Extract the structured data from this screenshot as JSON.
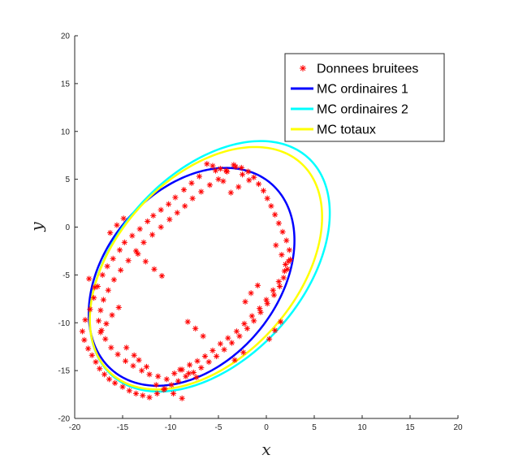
{
  "chart_data": {
    "type": "scatter",
    "title": "",
    "xlabel": "x",
    "ylabel": "y",
    "xlim": [
      -20,
      20
    ],
    "ylim": [
      -20,
      20
    ],
    "xticks": [
      "-20",
      "-15",
      "-10",
      "-5",
      "0",
      "5",
      "10",
      "15",
      "20"
    ],
    "yticks": [
      "20",
      "15",
      "10",
      "5",
      "0",
      "-5",
      "-10",
      "-15",
      "-20"
    ],
    "grid": false,
    "legend_position": "top-right",
    "legend": [
      {
        "label": "Donnees bruitees",
        "color": "#ff0000",
        "marker": "*"
      },
      {
        "label": "MC ordinaires 1",
        "color": "#0000ff",
        "marker": "line"
      },
      {
        "label": "MC ordinaires 2",
        "color": "#00ffff",
        "marker": "line"
      },
      {
        "label": "MC totaux",
        "color": "#ffff00",
        "marker": "line"
      }
    ],
    "series": [
      {
        "name": "Donnees bruitees",
        "kind": "points",
        "color": "#ff0000",
        "x": [
          -5.6,
          -4.8,
          -4.1,
          -3.2,
          -2.5,
          -1.8,
          -2.9,
          -3.7,
          -4.5,
          -5.3,
          -6.2,
          -7.0,
          -7.8,
          -8.6,
          -9.5,
          -10.2,
          -11.0,
          -11.8,
          -12.4,
          -13.2,
          -14.0,
          -14.8,
          -15.3,
          -16.0,
          -16.6,
          -17.1,
          -17.6,
          -18.0,
          -18.4,
          -18.9,
          -19.2,
          -19.0,
          -18.6,
          -18.2,
          -17.8,
          -17.4,
          -16.9,
          -16.4,
          -15.8,
          -15.0,
          -14.3,
          -13.6,
          -12.9,
          -12.2,
          -11.4,
          -10.6,
          -9.9,
          -9.2,
          -8.4,
          -7.6,
          -6.8,
          -6.0,
          -5.2,
          -4.4,
          -3.6,
          -2.8,
          -2.0,
          -1.3,
          -0.6,
          0.1,
          0.8,
          1.4,
          1.8,
          2.2,
          2.5,
          2.4,
          2.1,
          1.7,
          1.3,
          0.9,
          0.5,
          0.1,
          -0.3,
          -0.8,
          -1.3,
          -1.9,
          -2.6,
          -3.4,
          -4.2,
          -5.0,
          -5.9,
          -6.8,
          -7.7,
          -8.5,
          -9.3,
          -10.1,
          -11.0,
          -11.9,
          -12.8,
          -13.6,
          -14.4,
          -15.2,
          -15.9,
          -16.5,
          -17.0,
          -17.3,
          -17.5,
          -17.2,
          -16.8,
          -16.2,
          -15.5,
          -14.7,
          -13.9,
          -13.0,
          -12.2,
          -11.3,
          -10.4,
          -9.6,
          -8.8,
          -8.0,
          -7.2,
          -6.4,
          -5.6,
          -4.8,
          -4.0,
          -3.1,
          -2.3,
          -1.5,
          -0.7,
          0.0,
          0.7,
          1.3,
          1.9,
          2.3,
          -14.9,
          -15.6,
          -16.3,
          -13.4,
          -12.6,
          -11.7,
          -10.9,
          -8.2,
          -7.4,
          -6.6,
          -2.2,
          -1.6,
          -0.9,
          1.0,
          1.6,
          2.0,
          -15.4,
          -16.1,
          -16.7,
          -17.3,
          -13.3,
          -12.5,
          -9.0,
          -8.1,
          -7.3,
          -3.3,
          -2.4,
          0.3,
          0.9,
          1.5,
          -17.9,
          -18.5,
          -14.6,
          -13.8,
          -11.5,
          -10.7,
          -9.7,
          -8.8
        ],
        "y": [
          6.4,
          6.1,
          5.8,
          6.3,
          5.5,
          4.9,
          4.2,
          3.6,
          4.8,
          5.9,
          6.6,
          5.3,
          4.6,
          3.9,
          3.1,
          2.4,
          1.8,
          1.2,
          0.6,
          -0.2,
          -0.9,
          -1.6,
          -2.4,
          -3.3,
          -4.1,
          -5.0,
          -6.2,
          -7.4,
          -8.6,
          -9.7,
          -10.9,
          -11.8,
          -12.7,
          -13.4,
          -14.1,
          -14.8,
          -15.4,
          -15.9,
          -16.3,
          -16.7,
          -17.1,
          -17.4,
          -17.6,
          -17.8,
          -17.4,
          -16.9,
          -16.5,
          -16.1,
          -15.6,
          -15.2,
          -14.7,
          -14.1,
          -13.5,
          -12.8,
          -12.1,
          -11.4,
          -10.6,
          -9.8,
          -8.9,
          -8.0,
          -7.1,
          -6.2,
          -5.3,
          -4.4,
          -3.4,
          -2.4,
          -1.4,
          -0.5,
          0.4,
          1.3,
          2.2,
          3.0,
          3.8,
          4.5,
          5.2,
          5.8,
          6.2,
          6.5,
          5.9,
          5.0,
          4.4,
          3.7,
          3.0,
          2.2,
          1.5,
          0.8,
          0.0,
          -0.8,
          -1.6,
          -2.5,
          -3.5,
          -4.5,
          -5.5,
          -6.6,
          -7.6,
          -8.7,
          -9.8,
          -10.8,
          -11.7,
          -12.6,
          -13.3,
          -14.0,
          -14.5,
          -15.0,
          -15.4,
          -15.6,
          -15.9,
          -15.3,
          -14.9,
          -14.4,
          -14.0,
          -13.5,
          -12.9,
          -12.2,
          -11.6,
          -10.9,
          -10.1,
          -9.3,
          -8.5,
          -7.6,
          -6.6,
          -5.7,
          -4.6,
          -3.6,
          0.9,
          0.2,
          -0.6,
          -2.8,
          -3.6,
          -4.4,
          -5.1,
          -9.9,
          -10.6,
          -11.4,
          -7.8,
          -6.9,
          -6.1,
          -1.9,
          -2.9,
          -3.9,
          -8.4,
          -9.2,
          -10.1,
          -11.0,
          -13.9,
          -14.6,
          -14.9,
          -15.3,
          -15.7,
          -13.9,
          -13.1,
          -11.7,
          -10.8,
          -9.9,
          -6.3,
          -5.4,
          -12.6,
          -13.4,
          -16.5,
          -17.0,
          -17.4,
          -17.9
        ]
      },
      {
        "name": "MC ordinaires 1",
        "kind": "ellipse",
        "color": "#0000ff",
        "center": [
          -7.8,
          -5.2
        ],
        "semi_major": 12.8,
        "semi_minor": 9.0,
        "angle_deg": 50
      },
      {
        "name": "MC ordinaires 2",
        "kind": "ellipse",
        "color": "#00ffff",
        "center": [
          -5.9,
          -4.1
        ],
        "semi_major": 15.3,
        "semi_minor": 9.7,
        "angle_deg": 48
      },
      {
        "name": "MC totaux",
        "kind": "ellipse",
        "color": "#ffff00",
        "center": [
          -6.3,
          -4.3
        ],
        "semi_major": 14.8,
        "semi_minor": 9.4,
        "angle_deg": 48
      }
    ]
  }
}
